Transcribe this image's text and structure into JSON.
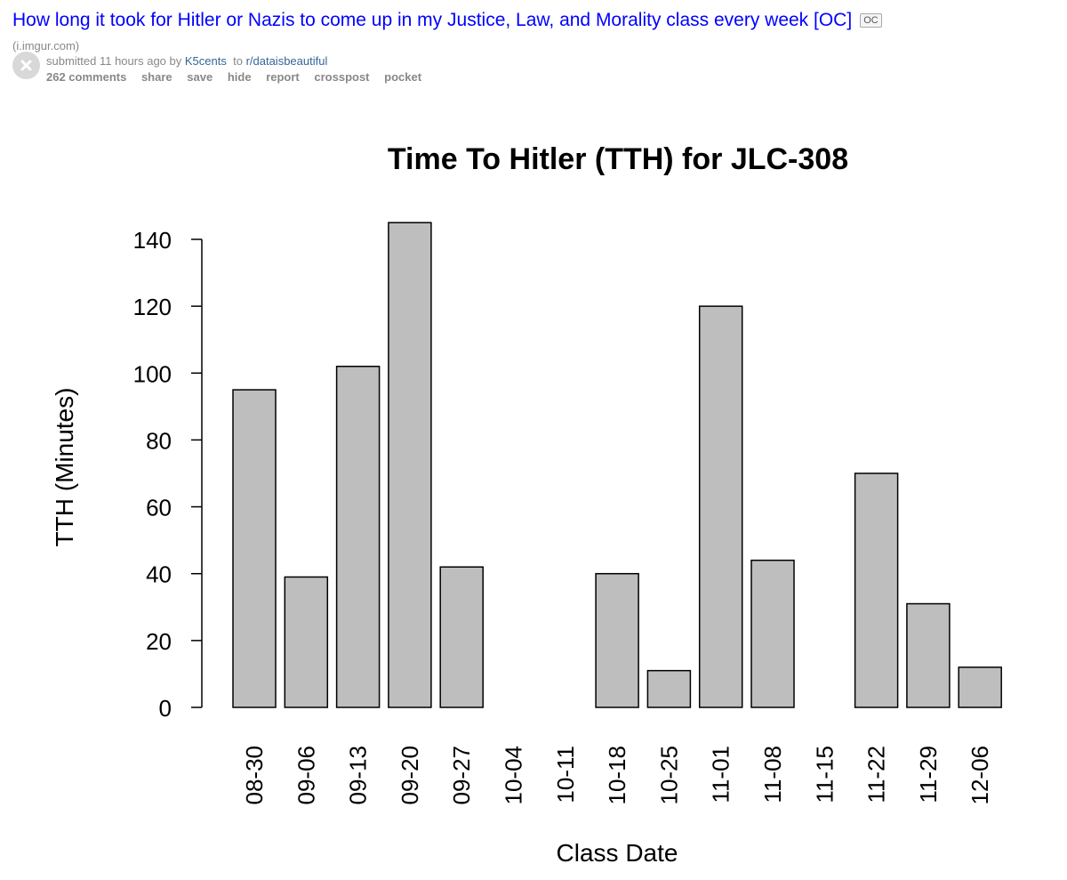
{
  "post": {
    "title": "How long it took for Hitler or Nazis to come up in my Justice, Law, and Morality class every week [OC]",
    "flair": "OC",
    "domain": "(i.imgur.com)",
    "submitted_prefix": "submitted 11 hours ago by",
    "author": "K5cents",
    "to_text": "to",
    "subreddit": "r/dataisbeautiful",
    "buttons": {
      "comments": "262 comments",
      "share": "share",
      "save": "save",
      "hide": "hide",
      "report": "report",
      "crosspost": "crosspost",
      "pocket": "pocket"
    }
  },
  "colors": {
    "title_link": "#0000ff",
    "bar_fill": "#bebebe",
    "bar_stroke": "#000000"
  },
  "icons": {
    "close": "close-icon"
  },
  "chart_data": {
    "type": "bar",
    "title": "Time To Hitler (TTH) for JLC-308",
    "xlabel": "Class Date",
    "ylabel": "TTH (Minutes)",
    "ylim": [
      0,
      140
    ],
    "yticks": [
      0,
      20,
      40,
      60,
      80,
      100,
      120,
      140
    ],
    "categories": [
      "08-30",
      "09-06",
      "09-13",
      "09-20",
      "09-27",
      "10-04",
      "10-11",
      "10-18",
      "10-25",
      "11-01",
      "11-08",
      "11-15",
      "11-22",
      "11-29",
      "12-06"
    ],
    "values": [
      95,
      39,
      102,
      145,
      42,
      null,
      null,
      40,
      11,
      120,
      44,
      null,
      70,
      31,
      12
    ],
    "grid": false
  }
}
